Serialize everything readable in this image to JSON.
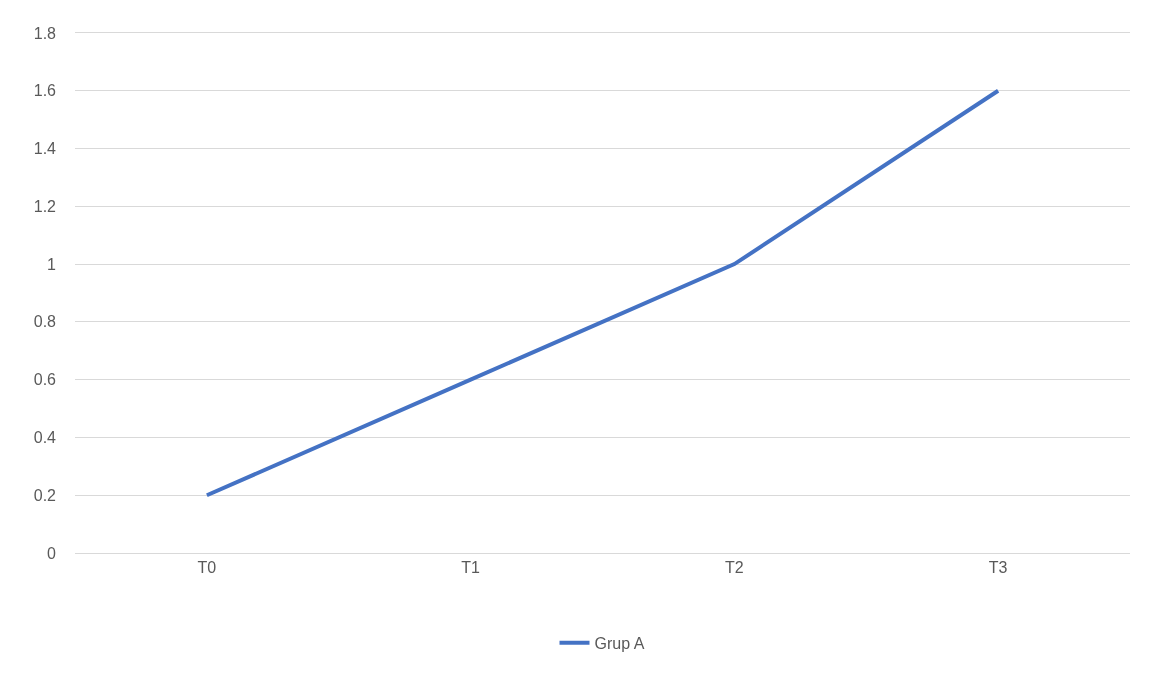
{
  "chart_data": {
    "type": "line",
    "categories": [
      "T0",
      "T1",
      "T2",
      "T3"
    ],
    "series": [
      {
        "name": "Grup A",
        "color": "#4472c4",
        "values": [
          0.2,
          0.6,
          1,
          1.6
        ]
      }
    ],
    "ylim": [
      0,
      1.8
    ],
    "yticks": [
      0,
      0.2,
      0.4,
      0.6,
      0.8,
      1,
      1.2,
      1.4,
      1.6,
      1.8
    ],
    "grid": "y",
    "legend": "bottom",
    "marker": "none",
    "line_style": "solid"
  }
}
